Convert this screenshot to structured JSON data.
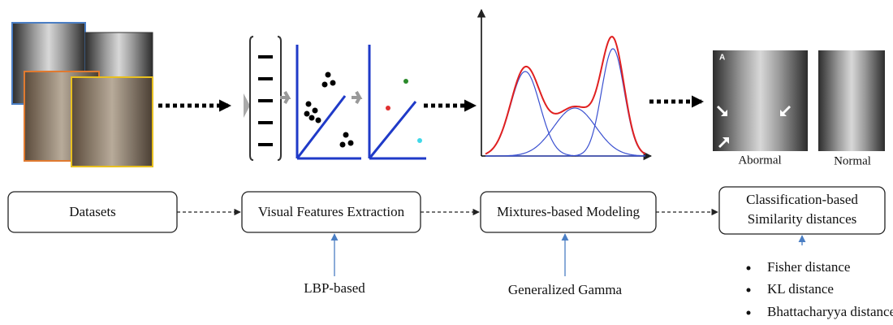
{
  "nodes": [
    {
      "label": [
        "Datasets"
      ]
    },
    {
      "label": [
        "Visual Features Extraction"
      ]
    },
    {
      "label": [
        "Mixtures-based Modeling"
      ]
    },
    {
      "label": [
        "Classification-based",
        "Similarity distances"
      ]
    }
  ],
  "annotations": [
    "LBP-based",
    "Generalized Gamma"
  ],
  "images": {
    "marker": "A",
    "captions": [
      "Abormal",
      "Normal"
    ]
  },
  "distances": [
    "Fisher distance",
    "KL distance",
    "Bhattacharyya distance"
  ]
}
